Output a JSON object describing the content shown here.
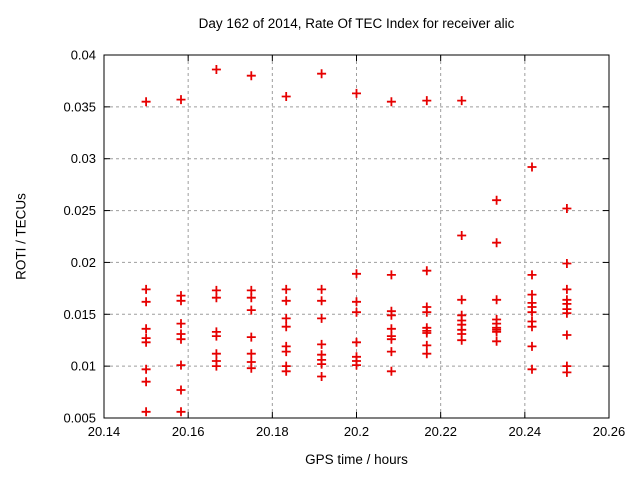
{
  "window": {
    "background": "#ffffff"
  },
  "colors": {
    "marker": "#e60000",
    "grid": "#9e9e9e",
    "axis": "#000000",
    "text": "#000000",
    "background": "#ffffff"
  },
  "chart_data": {
    "type": "scatter",
    "title": "Day 162 of 2014, Rate Of TEC Index for receiver alic",
    "xlabel": "GPS time / hours",
    "ylabel": "ROTI / TECUs",
    "xlim": [
      20.14,
      20.26
    ],
    "ylim": [
      0.005,
      0.04
    ],
    "grid": true,
    "legend_position": "none",
    "marker": "plus",
    "x_tick_values": [
      20.14,
      20.16,
      20.18,
      20.2,
      20.22,
      20.24,
      20.26
    ],
    "x_tick_labels": [
      "20.14",
      "20.16",
      "20.18",
      "20.2",
      "20.22",
      "20.24",
      "20.26"
    ],
    "y_tick_values": [
      0.005,
      0.01,
      0.015,
      0.02,
      0.025,
      0.03,
      0.035,
      0.04
    ],
    "y_tick_labels": [
      "0.005",
      "0.01",
      "0.015",
      "0.02",
      "0.025",
      "0.03",
      "0.035",
      "0.04"
    ],
    "series": [
      {
        "name": "ROTI",
        "points": [
          [
            20.15,
            0.0355
          ],
          [
            20.15,
            0.0174
          ],
          [
            20.15,
            0.0162
          ],
          [
            20.15,
            0.0136
          ],
          [
            20.15,
            0.0127
          ],
          [
            20.15,
            0.0123
          ],
          [
            20.15,
            0.0097
          ],
          [
            20.15,
            0.0085
          ],
          [
            20.15,
            0.0056
          ],
          [
            20.1583,
            0.0357
          ],
          [
            20.1583,
            0.0168
          ],
          [
            20.1583,
            0.0163
          ],
          [
            20.1583,
            0.0141
          ],
          [
            20.1583,
            0.0131
          ],
          [
            20.1583,
            0.0126
          ],
          [
            20.1583,
            0.0101
          ],
          [
            20.1583,
            0.0077
          ],
          [
            20.1583,
            0.0056
          ],
          [
            20.1667,
            0.0386
          ],
          [
            20.1667,
            0.0173
          ],
          [
            20.1667,
            0.0166
          ],
          [
            20.1667,
            0.0133
          ],
          [
            20.1667,
            0.0129
          ],
          [
            20.1667,
            0.0112
          ],
          [
            20.1667,
            0.0105
          ],
          [
            20.1667,
            0.01
          ],
          [
            20.175,
            0.038
          ],
          [
            20.175,
            0.0173
          ],
          [
            20.175,
            0.0166
          ],
          [
            20.175,
            0.0154
          ],
          [
            20.175,
            0.0128
          ],
          [
            20.175,
            0.0112
          ],
          [
            20.175,
            0.0104
          ],
          [
            20.175,
            0.0098
          ],
          [
            20.1833,
            0.036
          ],
          [
            20.1833,
            0.0174
          ],
          [
            20.1833,
            0.0163
          ],
          [
            20.1833,
            0.0146
          ],
          [
            20.1833,
            0.0138
          ],
          [
            20.1833,
            0.0119
          ],
          [
            20.1833,
            0.0114
          ],
          [
            20.1833,
            0.01
          ],
          [
            20.1833,
            0.0095
          ],
          [
            20.1917,
            0.0382
          ],
          [
            20.1917,
            0.0174
          ],
          [
            20.1917,
            0.0163
          ],
          [
            20.1917,
            0.0146
          ],
          [
            20.1917,
            0.0121
          ],
          [
            20.1917,
            0.0111
          ],
          [
            20.1917,
            0.0106
          ],
          [
            20.1917,
            0.0102
          ],
          [
            20.1917,
            0.009
          ],
          [
            20.2,
            0.0363
          ],
          [
            20.2,
            0.0189
          ],
          [
            20.2,
            0.0162
          ],
          [
            20.2,
            0.0152
          ],
          [
            20.2,
            0.0123
          ],
          [
            20.2,
            0.0109
          ],
          [
            20.2,
            0.0105
          ],
          [
            20.2,
            0.0101
          ],
          [
            20.2083,
            0.0355
          ],
          [
            20.2083,
            0.0188
          ],
          [
            20.2083,
            0.0153
          ],
          [
            20.2083,
            0.0149
          ],
          [
            20.2083,
            0.0136
          ],
          [
            20.2083,
            0.0129
          ],
          [
            20.2083,
            0.0126
          ],
          [
            20.2083,
            0.0114
          ],
          [
            20.2083,
            0.0095
          ],
          [
            20.2167,
            0.0356
          ],
          [
            20.2167,
            0.0192
          ],
          [
            20.2167,
            0.0157
          ],
          [
            20.2167,
            0.0152
          ],
          [
            20.2167,
            0.0137
          ],
          [
            20.2167,
            0.0134
          ],
          [
            20.2167,
            0.0132
          ],
          [
            20.2167,
            0.012
          ],
          [
            20.2167,
            0.0112
          ],
          [
            20.225,
            0.0356
          ],
          [
            20.225,
            0.0226
          ],
          [
            20.225,
            0.0164
          ],
          [
            20.225,
            0.0149
          ],
          [
            20.225,
            0.0144
          ],
          [
            20.225,
            0.014
          ],
          [
            20.225,
            0.0135
          ],
          [
            20.225,
            0.0131
          ],
          [
            20.225,
            0.0125
          ],
          [
            20.2333,
            0.026
          ],
          [
            20.2333,
            0.0219
          ],
          [
            20.2333,
            0.0164
          ],
          [
            20.2333,
            0.0145
          ],
          [
            20.2333,
            0.0141
          ],
          [
            20.2333,
            0.0137
          ],
          [
            20.2333,
            0.0135
          ],
          [
            20.2333,
            0.0133
          ],
          [
            20.2333,
            0.0124
          ],
          [
            20.2417,
            0.0292
          ],
          [
            20.2417,
            0.0188
          ],
          [
            20.2417,
            0.0169
          ],
          [
            20.2417,
            0.0161
          ],
          [
            20.2417,
            0.0157
          ],
          [
            20.2417,
            0.0152
          ],
          [
            20.2417,
            0.0143
          ],
          [
            20.2417,
            0.0138
          ],
          [
            20.2417,
            0.0119
          ],
          [
            20.2417,
            0.0097
          ],
          [
            20.25,
            0.0252
          ],
          [
            20.25,
            0.0199
          ],
          [
            20.25,
            0.0174
          ],
          [
            20.25,
            0.0164
          ],
          [
            20.25,
            0.016
          ],
          [
            20.25,
            0.0155
          ],
          [
            20.25,
            0.0151
          ],
          [
            20.25,
            0.013
          ],
          [
            20.25,
            0.01
          ],
          [
            20.25,
            0.0094
          ]
        ]
      }
    ]
  }
}
